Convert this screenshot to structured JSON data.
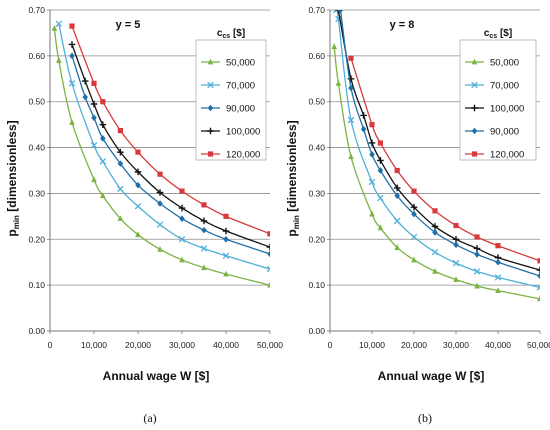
{
  "chart_data": [
    {
      "type": "line",
      "panel_title": "y = 5",
      "caption": "(a)",
      "xlabel": "Annual wage W [$]",
      "ylabel": "p",
      "ylabel_sub": "min",
      "ylabel_rest": " [dimensionless]",
      "xlim": [
        0,
        50000
      ],
      "ylim": [
        0,
        0.7
      ],
      "xticks": [
        0,
        10000,
        20000,
        30000,
        40000,
        50000
      ],
      "xtick_labels": [
        "0",
        "10,000",
        "20,000",
        "30,000",
        "40,000",
        "50,000"
      ],
      "yticks": [
        0,
        0.1,
        0.2,
        0.3,
        0.4,
        0.5,
        0.6,
        0.7
      ],
      "ytick_labels": [
        "0.00",
        "0.10",
        "0.20",
        "0.30",
        "0.40",
        "0.50",
        "0.60",
        "0.70"
      ],
      "grid": "horizontal",
      "legend": {
        "title": "c",
        "title_sub": "cs",
        "title_rest": " [$]",
        "placement": "top-right"
      },
      "series": [
        {
          "name": "50,000",
          "color": "#7cb342",
          "marker": "triangle",
          "x": [
            1000,
            2000,
            5000,
            10000,
            12000,
            16000,
            20000,
            25000,
            30000,
            35000,
            40000,
            50000
          ],
          "y": [
            0.66,
            0.59,
            0.455,
            0.33,
            0.295,
            0.245,
            0.21,
            0.178,
            0.155,
            0.138,
            0.124,
            0.1
          ]
        },
        {
          "name": "70,000",
          "color": "#4fb0d8",
          "marker": "x",
          "x": [
            2000,
            5000,
            10000,
            12000,
            16000,
            20000,
            25000,
            30000,
            35000,
            40000,
            50000
          ],
          "y": [
            0.67,
            0.54,
            0.405,
            0.37,
            0.31,
            0.272,
            0.232,
            0.2,
            0.18,
            0.164,
            0.135
          ]
        },
        {
          "name": "90,000",
          "color": "#1f6fa8",
          "marker": "diamond",
          "x": [
            5000,
            8000,
            10000,
            12000,
            16000,
            20000,
            25000,
            30000,
            35000,
            40000,
            50000
          ],
          "y": [
            0.6,
            0.51,
            0.465,
            0.42,
            0.365,
            0.318,
            0.278,
            0.245,
            0.22,
            0.2,
            0.168
          ]
        },
        {
          "name": "100,000",
          "color": "#111111",
          "marker": "plus",
          "x": [
            5000,
            8000,
            10000,
            12000,
            16000,
            20000,
            25000,
            30000,
            35000,
            40000,
            50000
          ],
          "y": [
            0.625,
            0.545,
            0.495,
            0.45,
            0.39,
            0.347,
            0.302,
            0.268,
            0.24,
            0.218,
            0.183
          ]
        },
        {
          "name": "120,000",
          "color": "#d63a3a",
          "marker": "square",
          "x": [
            5000,
            10000,
            12000,
            16000,
            20000,
            25000,
            30000,
            35000,
            40000,
            50000
          ],
          "y": [
            0.665,
            0.54,
            0.5,
            0.437,
            0.39,
            0.342,
            0.305,
            0.275,
            0.25,
            0.212
          ]
        }
      ]
    },
    {
      "type": "line",
      "panel_title": "y = 8",
      "caption": "(b)",
      "xlabel": "Annual wage W [$]",
      "ylabel": "p",
      "ylabel_sub": "min",
      "ylabel_rest": " [dimensionless]",
      "xlim": [
        0,
        50000
      ],
      "ylim": [
        0,
        0.7
      ],
      "xticks": [
        0,
        10000,
        20000,
        30000,
        40000,
        50000
      ],
      "xtick_labels": [
        "0",
        "10,000",
        "20,000",
        "30,000",
        "40,000",
        "50,000"
      ],
      "yticks": [
        0,
        0.1,
        0.2,
        0.3,
        0.4,
        0.5,
        0.6,
        0.7
      ],
      "ytick_labels": [
        "0.00",
        "0.10",
        "0.20",
        "0.30",
        "0.40",
        "0.50",
        "0.60",
        "0.70"
      ],
      "grid": "horizontal",
      "legend": {
        "title": "c",
        "title_sub": "cs",
        "title_rest": " [$]",
        "placement": "top-right"
      },
      "series": [
        {
          "name": "50,000",
          "color": "#7cb342",
          "marker": "triangle",
          "x": [
            1000,
            2000,
            5000,
            10000,
            12000,
            16000,
            20000,
            25000,
            30000,
            35000,
            40000,
            50000
          ],
          "y": [
            0.62,
            0.54,
            0.38,
            0.255,
            0.225,
            0.182,
            0.155,
            0.13,
            0.112,
            0.098,
            0.088,
            0.07
          ]
        },
        {
          "name": "70,000",
          "color": "#4fb0d8",
          "marker": "x",
          "x": [
            1500,
            2000,
            5000,
            10000,
            12000,
            16000,
            20000,
            25000,
            30000,
            35000,
            40000,
            50000
          ],
          "y": [
            0.7,
            0.68,
            0.46,
            0.325,
            0.29,
            0.24,
            0.205,
            0.172,
            0.148,
            0.13,
            0.117,
            0.095
          ]
        },
        {
          "name": "100,000",
          "color": "#111111",
          "marker": "plus",
          "x": [
            2000,
            5000,
            8000,
            10000,
            12000,
            16000,
            20000,
            25000,
            30000,
            35000,
            40000,
            50000
          ],
          "y": [
            0.7,
            0.55,
            0.47,
            0.41,
            0.372,
            0.312,
            0.27,
            0.228,
            0.2,
            0.18,
            0.16,
            0.133
          ]
        },
        {
          "name": "90,000",
          "color": "#1f6fa8",
          "marker": "diamond",
          "x": [
            2500,
            5000,
            8000,
            10000,
            12000,
            16000,
            20000,
            25000,
            30000,
            35000,
            40000,
            50000
          ],
          "y": [
            0.7,
            0.53,
            0.44,
            0.385,
            0.35,
            0.295,
            0.255,
            0.215,
            0.188,
            0.167,
            0.15,
            0.12
          ]
        },
        {
          "name": "120,000",
          "color": "#d63a3a",
          "marker": "square",
          "x": [
            5000,
            10000,
            12000,
            16000,
            20000,
            25000,
            30000,
            35000,
            40000,
            50000
          ],
          "y": [
            0.595,
            0.45,
            0.41,
            0.35,
            0.305,
            0.262,
            0.23,
            0.205,
            0.186,
            0.153
          ]
        }
      ]
    }
  ]
}
